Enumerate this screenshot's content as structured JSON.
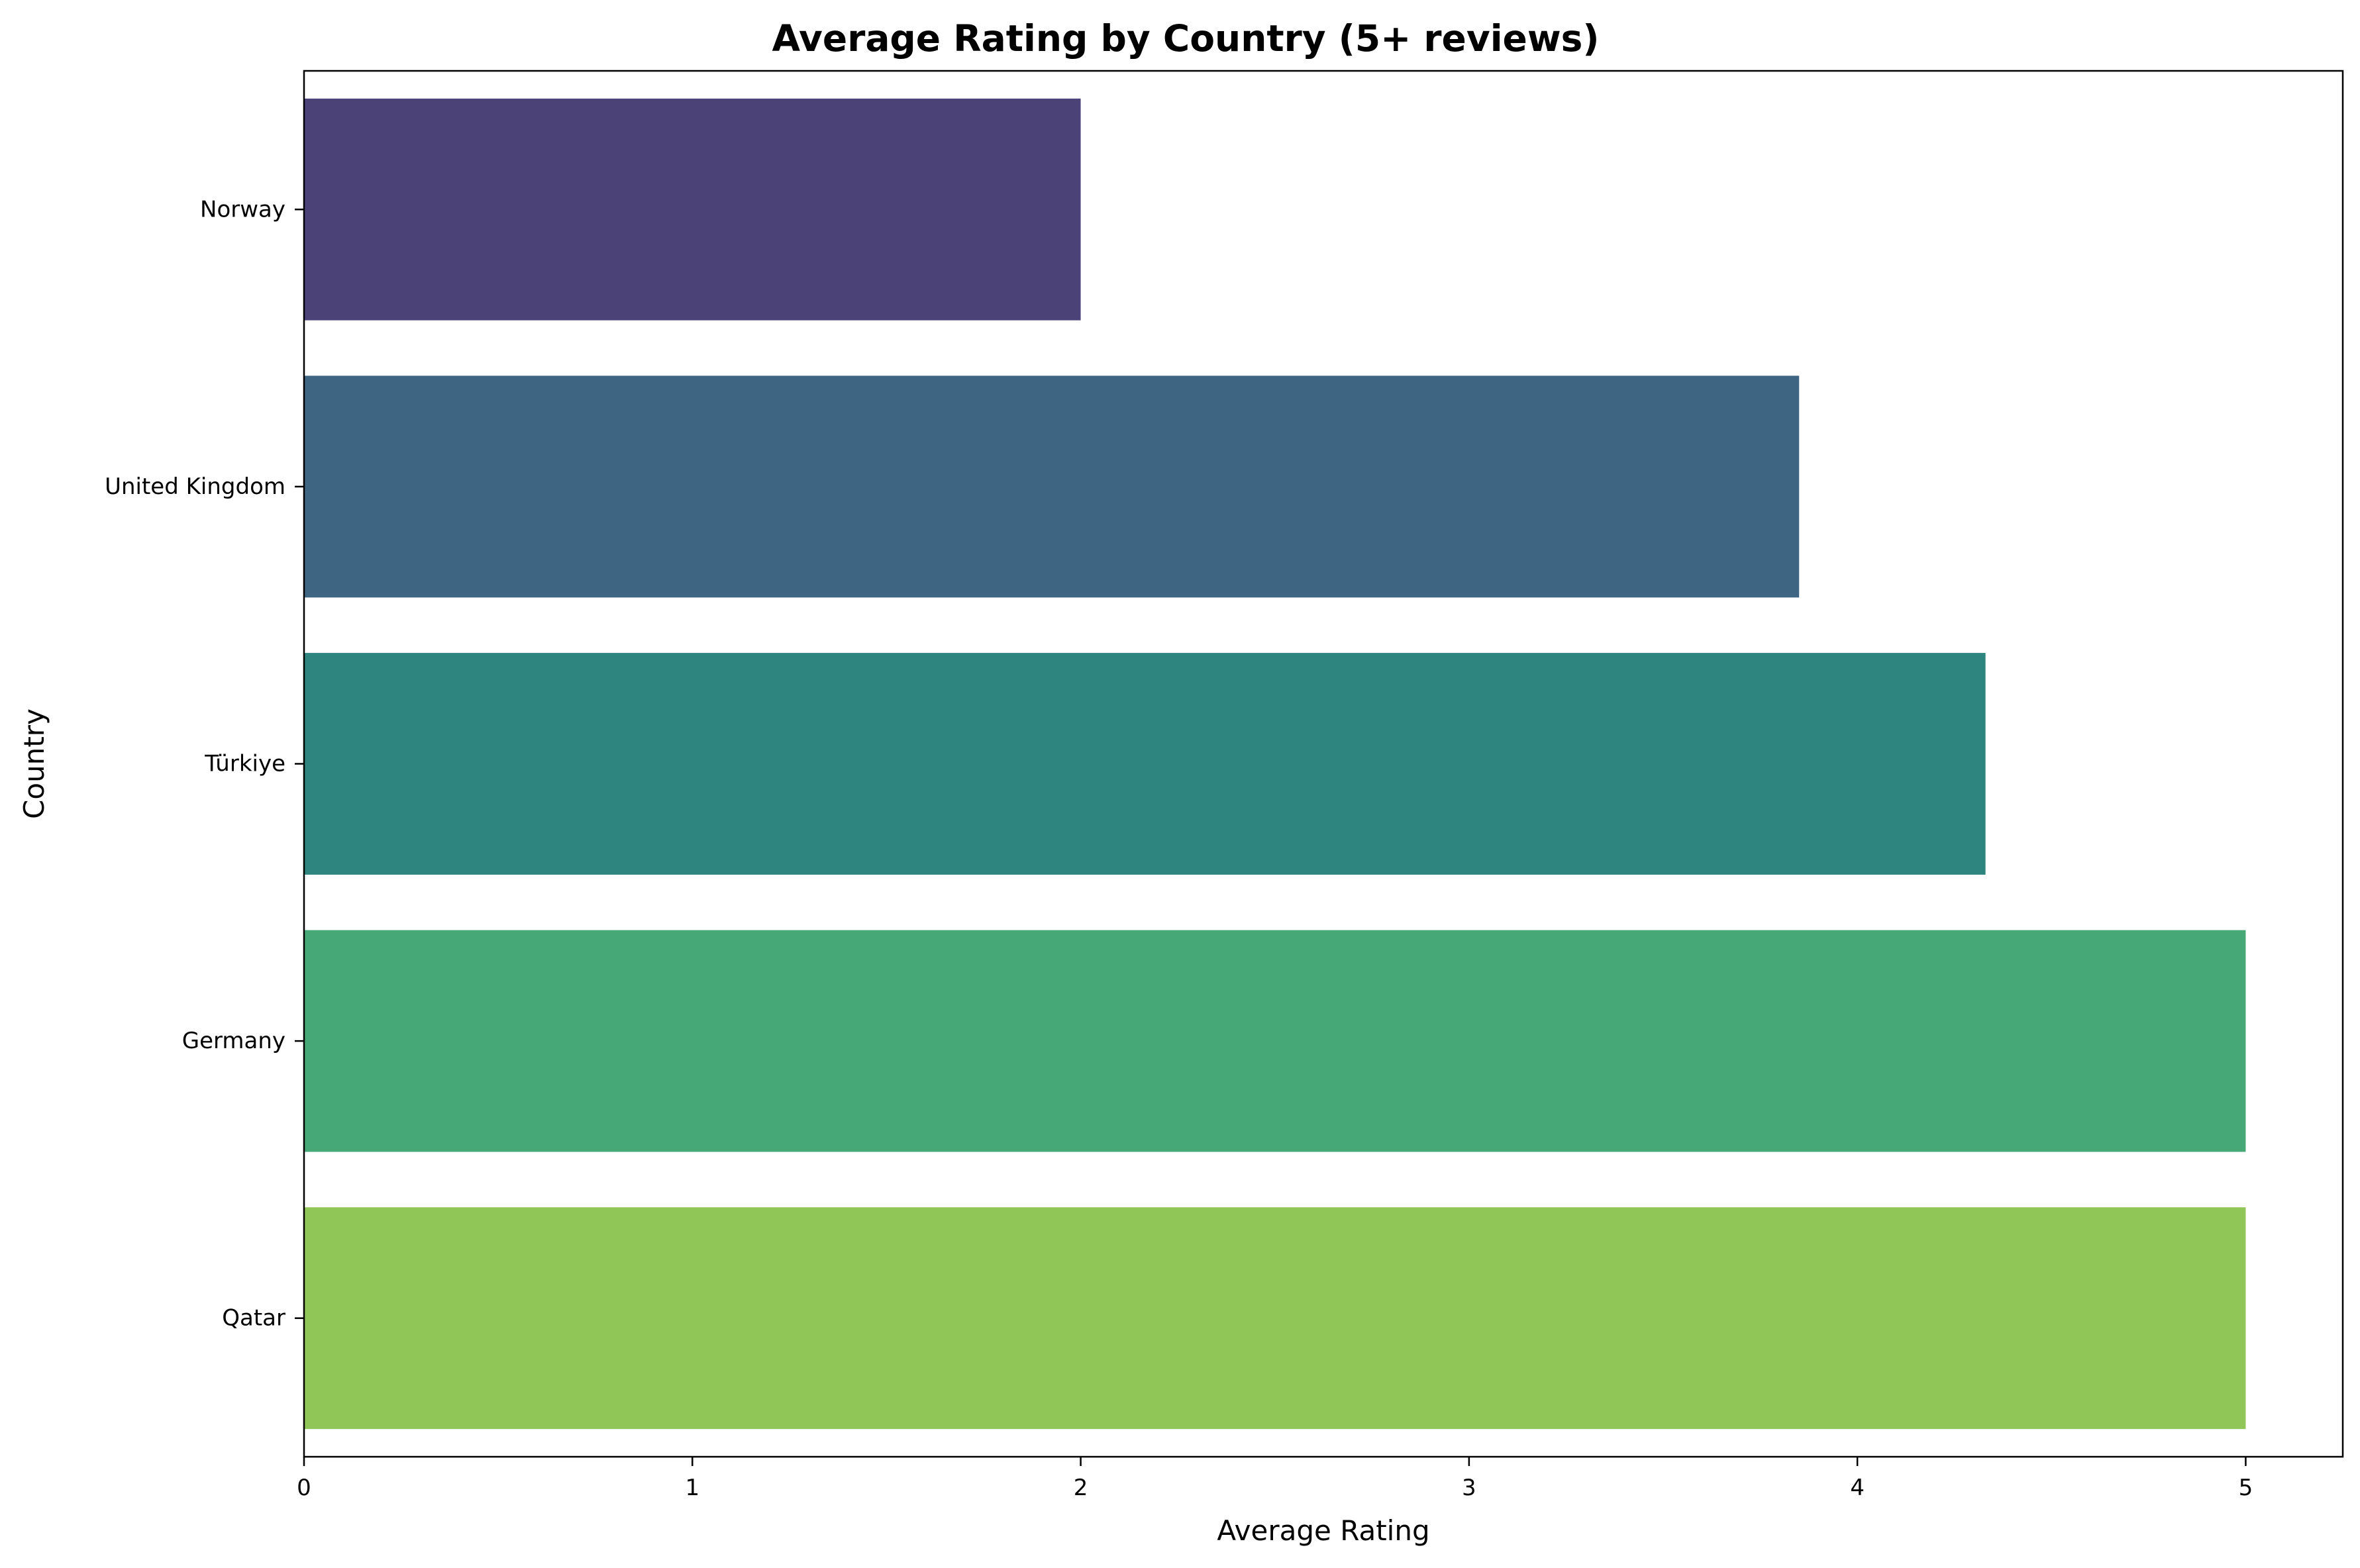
{
  "chart_data": {
    "type": "bar",
    "orientation": "horizontal",
    "title": "Average Rating by Country (5+ reviews)",
    "xlabel": "Average Rating",
    "ylabel": "Country",
    "categories": [
      "Norway",
      "United Kingdom",
      "Türkiye",
      "Germany",
      "Qatar"
    ],
    "values": [
      2.0,
      3.85,
      4.33,
      5.0,
      5.0
    ],
    "colors": [
      "#4b4378",
      "#3e6682",
      "#2e847e",
      "#47a877",
      "#90c658"
    ],
    "xlim": [
      0,
      5.25
    ],
    "xticks": [
      "0",
      "1",
      "2",
      "3",
      "4",
      "5"
    ],
    "grid": false,
    "legend": false
  }
}
